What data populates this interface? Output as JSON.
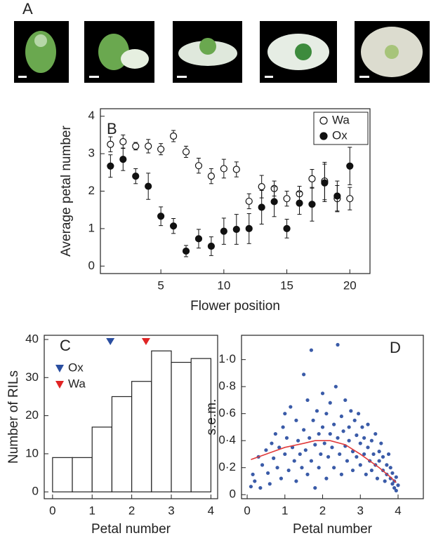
{
  "images": {
    "label": "A"
  },
  "chart_data": [
    {
      "type": "scatter",
      "title": "B",
      "xlabel": "Flower position",
      "ylabel": "Average petal number",
      "xlim": [
        0.2,
        21.6
      ],
      "ylim": [
        -0.2,
        4.2
      ],
      "xticks": [
        5,
        10,
        15,
        20
      ],
      "yticks": [
        0,
        1,
        2,
        3,
        4
      ],
      "x": [
        1,
        2,
        3,
        4,
        5,
        6,
        7,
        8,
        9,
        10,
        11,
        12,
        13,
        14,
        15,
        16,
        17,
        18,
        19,
        20
      ],
      "series": [
        {
          "name": "Wa",
          "color": "#111111",
          "marker": "open",
          "values": [
            3.25,
            3.32,
            3.2,
            3.2,
            3.12,
            3.47,
            3.05,
            2.68,
            2.4,
            2.6,
            2.58,
            1.73,
            2.12,
            2.07,
            1.8,
            1.93,
            2.33,
            2.27,
            1.8,
            1.8
          ],
          "errors": [
            0.2,
            0.18,
            0.1,
            0.18,
            0.15,
            0.15,
            0.15,
            0.2,
            0.2,
            0.25,
            0.2,
            0.2,
            0.3,
            0.2,
            0.2,
            0.2,
            0.25,
            0.5,
            0.35,
            0.3
          ]
        },
        {
          "name": "Ox",
          "color": "#111111",
          "marker": "filled",
          "values": [
            2.67,
            2.85,
            2.4,
            2.13,
            1.33,
            1.07,
            0.4,
            0.73,
            0.53,
            0.93,
            0.98,
            1.0,
            1.57,
            1.72,
            1.0,
            1.68,
            1.65,
            2.22,
            1.87,
            2.67
          ],
          "errors": [
            0.3,
            0.3,
            0.2,
            0.35,
            0.25,
            0.2,
            0.15,
            0.25,
            0.25,
            0.35,
            0.4,
            0.4,
            0.45,
            0.4,
            0.25,
            0.3,
            0.45,
            0.5,
            0.4,
            0.5
          ]
        }
      ]
    },
    {
      "type": "histogram",
      "title": "C",
      "xlabel": "Petal number",
      "ylabel": "Number of RILs",
      "xlim": [
        -0.21,
        4.17
      ],
      "ylim": [
        -1.8,
        41.1
      ],
      "xticks": [
        0,
        1,
        2,
        3,
        4
      ],
      "yticks": [
        0,
        10,
        20,
        30,
        40
      ],
      "bins": [
        0,
        0.5,
        1,
        1.5,
        2,
        2.5,
        3,
        3.5,
        4
      ],
      "values": [
        9,
        9,
        17,
        25,
        29,
        37,
        34,
        35
      ],
      "color": "#ffffff",
      "markers": [
        {
          "name": "Ox",
          "color": "#2a4ea0",
          "value": 1.46
        },
        {
          "name": "Wa",
          "color": "#e02424",
          "value": 2.36
        }
      ]
    },
    {
      "type": "scatter",
      "title": "D",
      "xlabel": "Petal number",
      "ylabel": "s.e.m.",
      "xlim": [
        -0.15,
        4.67
      ],
      "ylim": [
        -0.03,
        1.18
      ],
      "xticks": [
        0,
        1,
        2,
        3,
        4
      ],
      "yticks": [
        0,
        {
          "value": 0.2,
          "label": "0·2"
        },
        {
          "value": 0.4,
          "label": "0·4"
        },
        {
          "value": 0.6,
          "label": "0·6"
        },
        {
          "value": 0.8,
          "label": "0·8"
        },
        {
          "value": 1.0,
          "label": "1·0"
        }
      ],
      "color": "#3a5ba8",
      "x": [
        0.1,
        0.15,
        0.2,
        0.3,
        0.35,
        0.4,
        0.5,
        0.55,
        0.6,
        0.65,
        0.7,
        0.75,
        0.8,
        0.85,
        0.9,
        0.95,
        1.0,
        1.0,
        1.05,
        1.1,
        1.15,
        1.2,
        1.25,
        1.3,
        1.3,
        1.35,
        1.4,
        1.45,
        1.5,
        1.5,
        1.55,
        1.6,
        1.6,
        1.65,
        1.7,
        1.7,
        1.75,
        1.8,
        1.8,
        1.85,
        1.9,
        1.9,
        1.95,
        2.0,
        2.0,
        2.05,
        2.1,
        2.1,
        2.15,
        2.2,
        2.2,
        2.25,
        2.3,
        2.3,
        2.35,
        2.4,
        2.4,
        2.45,
        2.5,
        2.5,
        2.55,
        2.6,
        2.6,
        2.65,
        2.7,
        2.7,
        2.75,
        2.8,
        2.8,
        2.85,
        2.9,
        2.9,
        2.95,
        3.0,
        3.0,
        3.05,
        3.1,
        3.1,
        3.15,
        3.2,
        3.2,
        3.25,
        3.3,
        3.3,
        3.35,
        3.4,
        3.4,
        3.45,
        3.5,
        3.5,
        3.55,
        3.6,
        3.6,
        3.65,
        3.7,
        3.7,
        3.75,
        3.8,
        3.8,
        3.85,
        3.85,
        3.9,
        3.9,
        3.95,
        3.95,
        4.0
      ],
      "values": [
        0.06,
        0.15,
        0.1,
        0.28,
        0.05,
        0.22,
        0.33,
        0.16,
        0.08,
        0.38,
        0.27,
        0.45,
        0.2,
        0.35,
        0.12,
        0.5,
        0.3,
        0.6,
        0.42,
        0.18,
        0.65,
        0.35,
        0.25,
        0.55,
        0.1,
        0.4,
        0.3,
        0.2,
        0.48,
        0.89,
        0.33,
        0.7,
        0.15,
        0.42,
        1.07,
        0.25,
        0.55,
        0.37,
        0.05,
        0.62,
        0.45,
        0.2,
        0.3,
        0.5,
        0.75,
        0.38,
        0.12,
        0.6,
        0.28,
        0.45,
        0.68,
        0.35,
        0.2,
        0.52,
        0.8,
        1.11,
        0.42,
        0.3,
        0.58,
        0.15,
        0.47,
        0.36,
        0.7,
        0.25,
        0.5,
        0.4,
        0.62,
        0.32,
        0.18,
        0.55,
        0.44,
        0.28,
        0.6,
        0.38,
        0.22,
        0.5,
        0.3,
        0.42,
        0.15,
        0.35,
        0.52,
        0.25,
        0.4,
        0.18,
        0.3,
        0.45,
        0.22,
        0.12,
        0.32,
        0.25,
        0.38,
        0.18,
        0.28,
        0.1,
        0.22,
        0.15,
        0.3,
        0.12,
        0.2,
        0.08,
        0.16,
        0.1,
        0.05,
        0.13,
        0.03,
        0.07
      ],
      "line": {
        "color": "#e03a3a",
        "x": [
          0.1,
          0.5,
          1,
          1.5,
          1.8,
          2.2,
          2.6,
          3,
          3.5,
          3.8,
          3.95
        ],
        "values": [
          0.26,
          0.3,
          0.35,
          0.38,
          0.4,
          0.4,
          0.37,
          0.3,
          0.2,
          0.13,
          0.09
        ]
      }
    }
  ]
}
